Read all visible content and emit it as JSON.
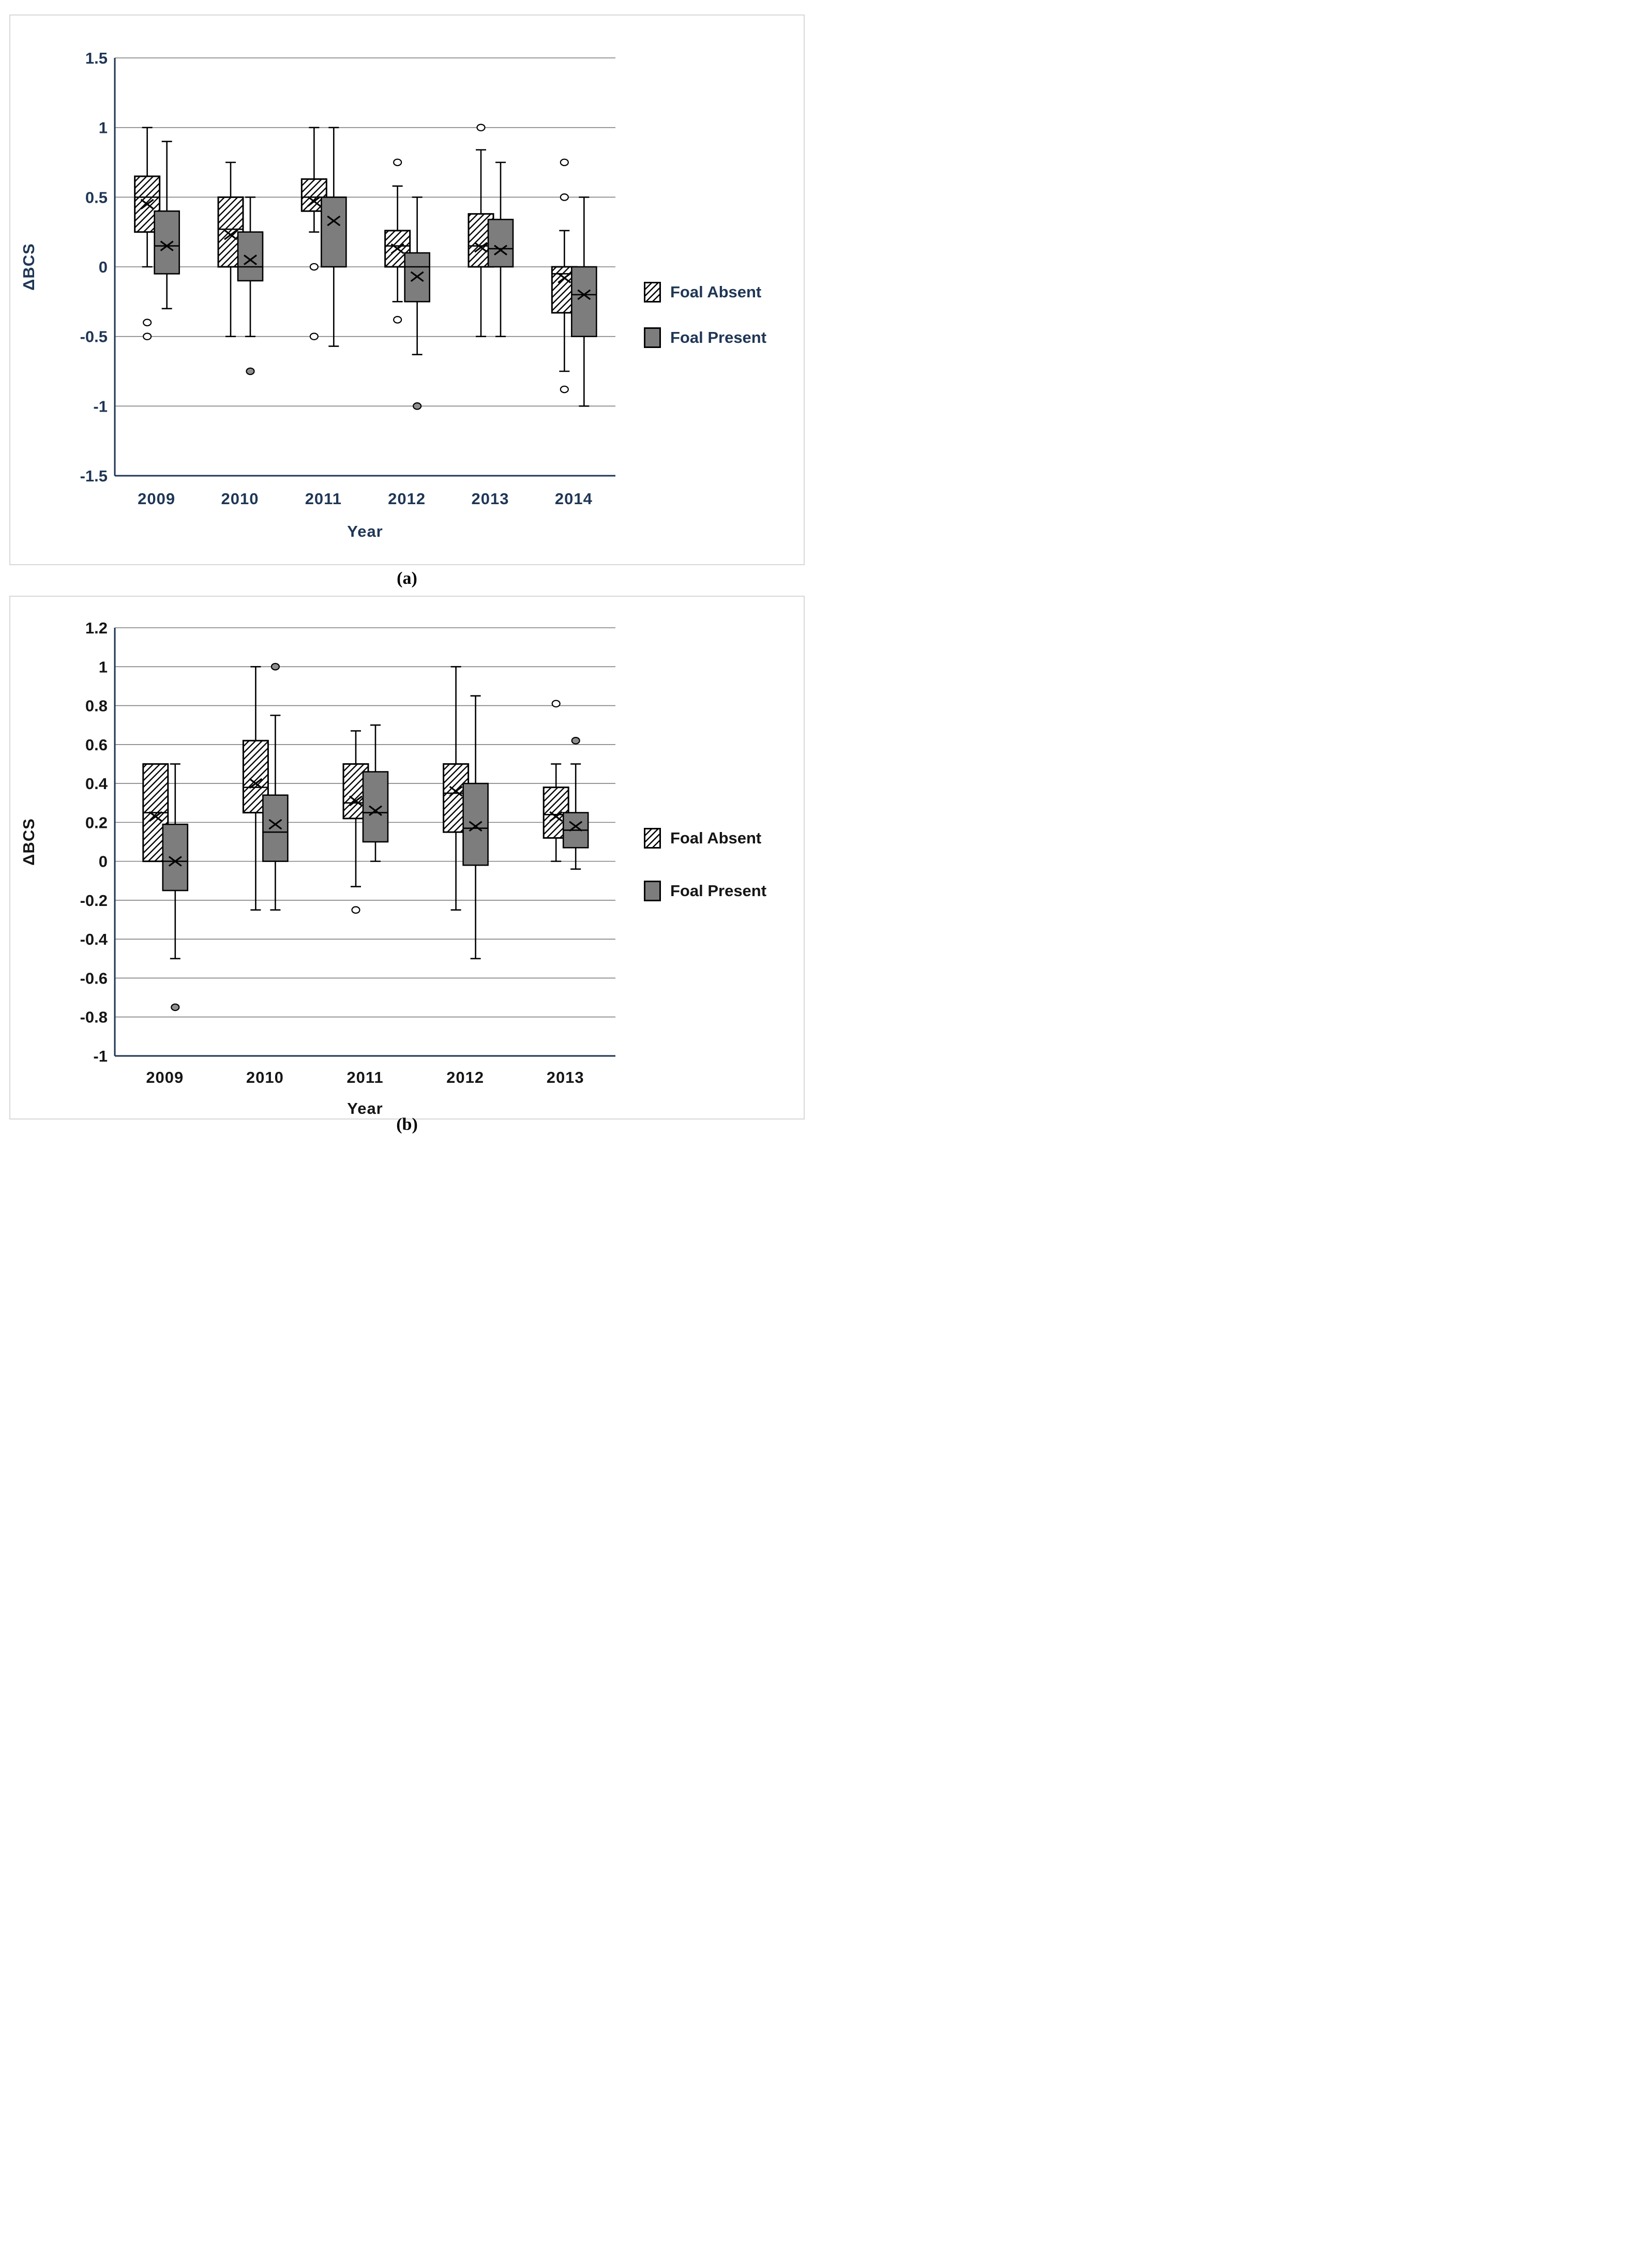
{
  "page": {
    "caption_a": "(a)",
    "caption_b": "(b)"
  },
  "legend": {
    "absent_label": "Foal Absent",
    "present_label": "Foal Present"
  },
  "colors": {
    "navy_text": "#1f3655",
    "black_text": "#151515",
    "grid": "#7f7f7f",
    "axis": "#1f3655",
    "present_fill": "#7d7d7d",
    "filled_outlier": "#8f8f8f"
  },
  "chart_data": [
    {
      "id": "a",
      "type": "boxplot",
      "title": "",
      "xlabel": "Year",
      "ylabel": "ΔBCS",
      "ylim": [
        -1.5,
        1.5
      ],
      "yticks": [
        1.5,
        1,
        0.5,
        0,
        -0.5,
        -1,
        -1.5
      ],
      "ytick_labels": [
        "1.5",
        "1",
        "0.5",
        "0",
        "-0.5",
        "-1",
        "-1.5"
      ],
      "categories": [
        "2009",
        "2010",
        "2011",
        "2012",
        "2013",
        "2014"
      ],
      "grid_on": true,
      "legend_position": "right",
      "text_color": "#1f3655",
      "axis_color": "#1f3655",
      "grid_color": "#7f7f7f",
      "series": [
        {
          "name": "Foal Absent",
          "style": "hatched",
          "fill": "hatch",
          "outlier_style": "open",
          "boxes": [
            {
              "q1": 0.25,
              "q3": 0.65,
              "median": 0.5,
              "mean": 0.45,
              "whisker_low": 0.0,
              "whisker_high": 1.0,
              "outliers": [
                -0.4,
                -0.5
              ]
            },
            {
              "q1": 0.0,
              "q3": 0.5,
              "median": 0.27,
              "mean": 0.23,
              "whisker_low": -0.5,
              "whisker_high": 0.75,
              "outliers": []
            },
            {
              "q1": 0.4,
              "q3": 0.63,
              "median": 0.5,
              "mean": 0.47,
              "whisker_low": 0.25,
              "whisker_high": 1.0,
              "outliers": [
                0.0,
                -0.5
              ]
            },
            {
              "q1": 0.0,
              "q3": 0.26,
              "median": 0.15,
              "mean": 0.13,
              "whisker_low": -0.25,
              "whisker_high": 0.58,
              "outliers": [
                0.75,
                -0.38
              ]
            },
            {
              "q1": 0.0,
              "q3": 0.38,
              "median": 0.15,
              "mean": 0.14,
              "whisker_low": -0.5,
              "whisker_high": 0.84,
              "outliers": [
                1.0
              ]
            },
            {
              "q1": -0.33,
              "q3": 0.0,
              "median": -0.05,
              "mean": -0.08,
              "whisker_low": -0.75,
              "whisker_high": 0.26,
              "outliers": [
                0.75,
                0.5,
                -0.88
              ]
            }
          ]
        },
        {
          "name": "Foal Present",
          "style": "solid",
          "fill": "#7d7d7d",
          "outlier_style": "filled",
          "boxes": [
            {
              "q1": -0.05,
              "q3": 0.4,
              "median": 0.15,
              "mean": 0.15,
              "whisker_low": -0.3,
              "whisker_high": 0.9,
              "outliers": []
            },
            {
              "q1": -0.1,
              "q3": 0.25,
              "median": 0.0,
              "mean": 0.05,
              "whisker_low": -0.5,
              "whisker_high": 0.5,
              "outliers": [
                -0.75
              ]
            },
            {
              "q1": 0.0,
              "q3": 0.5,
              "median": 0.5,
              "mean": 0.33,
              "whisker_low": -0.57,
              "whisker_high": 1.0,
              "outliers": []
            },
            {
              "q1": -0.25,
              "q3": 0.1,
              "median": 0.0,
              "mean": -0.07,
              "whisker_low": -0.63,
              "whisker_high": 0.5,
              "outliers": [
                -1.0
              ]
            },
            {
              "q1": 0.0,
              "q3": 0.34,
              "median": 0.13,
              "mean": 0.12,
              "whisker_low": -0.5,
              "whisker_high": 0.75,
              "outliers": []
            },
            {
              "q1": -0.5,
              "q3": 0.0,
              "median": -0.2,
              "mean": -0.2,
              "whisker_low": -1.0,
              "whisker_high": 0.5,
              "outliers": []
            }
          ]
        }
      ]
    },
    {
      "id": "b",
      "type": "boxplot",
      "title": "",
      "xlabel": "Year",
      "ylabel": "ΔBCS",
      "ylim": [
        -1,
        1.2
      ],
      "yticks": [
        1.2,
        1,
        0.8,
        0.6,
        0.4,
        0.2,
        0,
        -0.2,
        -0.4,
        -0.6,
        -0.8,
        -1
      ],
      "ytick_labels": [
        "1.2",
        "1",
        "0.8",
        "0.6",
        "0.4",
        "0.2",
        "0",
        "-0.2",
        "-0.4",
        "-0.6",
        "-0.8",
        "-1"
      ],
      "categories": [
        "2009",
        "2010",
        "2011",
        "2012",
        "2013"
      ],
      "grid_on": true,
      "legend_position": "right",
      "text_color": "#151515",
      "axis_color": "#1f3655",
      "grid_color": "#7f7f7f",
      "series": [
        {
          "name": "Foal Absent",
          "style": "hatched",
          "fill": "hatch",
          "outlier_style": "open",
          "boxes": [
            {
              "q1": 0.0,
              "q3": 0.5,
              "median": 0.25,
              "mean": 0.23,
              "whisker_low": 0.0,
              "whisker_high": 0.5,
              "outliers": []
            },
            {
              "q1": 0.25,
              "q3": 0.62,
              "median": 0.38,
              "mean": 0.4,
              "whisker_low": -0.25,
              "whisker_high": 1.0,
              "outliers": []
            },
            {
              "q1": 0.22,
              "q3": 0.5,
              "median": 0.3,
              "mean": 0.31,
              "whisker_low": -0.13,
              "whisker_high": 0.67,
              "outliers": [
                -0.25
              ]
            },
            {
              "q1": 0.15,
              "q3": 0.5,
              "median": 0.35,
              "mean": 0.36,
              "whisker_low": -0.25,
              "whisker_high": 1.0,
              "outliers": []
            },
            {
              "q1": 0.12,
              "q3": 0.38,
              "median": 0.24,
              "mean": 0.23,
              "whisker_low": 0.0,
              "whisker_high": 0.5,
              "outliers": [
                0.81
              ]
            }
          ]
        },
        {
          "name": "Foal Present",
          "style": "solid",
          "fill": "#7d7d7d",
          "outlier_style": "filled",
          "boxes": [
            {
              "q1": -0.15,
              "q3": 0.19,
              "median": 0.0,
              "mean": 0.0,
              "whisker_low": -0.5,
              "whisker_high": 0.5,
              "outliers": [
                -0.75
              ]
            },
            {
              "q1": 0.0,
              "q3": 0.34,
              "median": 0.15,
              "mean": 0.19,
              "whisker_low": -0.25,
              "whisker_high": 0.75,
              "outliers": [
                1.0
              ]
            },
            {
              "q1": 0.1,
              "q3": 0.46,
              "median": 0.25,
              "mean": 0.26,
              "whisker_low": 0.0,
              "whisker_high": 0.7,
              "outliers": []
            },
            {
              "q1": -0.02,
              "q3": 0.4,
              "median": 0.17,
              "mean": 0.18,
              "whisker_low": -0.5,
              "whisker_high": 0.85,
              "outliers": []
            },
            {
              "q1": 0.07,
              "q3": 0.25,
              "median": 0.16,
              "mean": 0.18,
              "whisker_low": -0.04,
              "whisker_high": 0.5,
              "outliers": [
                0.62
              ]
            }
          ]
        }
      ]
    }
  ]
}
